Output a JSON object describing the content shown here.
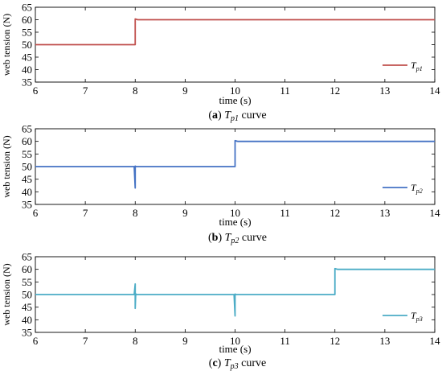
{
  "chart_data": [
    {
      "type": "line",
      "caption_letter": "a",
      "caption_symbol": "T",
      "caption_sub": "p1",
      "caption_suffix": "curve",
      "xlabel": "time (s)",
      "ylabel": "web tension (N)",
      "xlim": [
        6,
        14
      ],
      "ylim": [
        35,
        65
      ],
      "xticks": [
        6,
        7,
        8,
        9,
        10,
        11,
        12,
        13,
        14
      ],
      "yticks": [
        35,
        40,
        45,
        50,
        55,
        60,
        65
      ],
      "grid": false,
      "legend_position": "bottom-right",
      "series": [
        {
          "name": "Tp1",
          "legend_symbol": "T",
          "legend_sub": "p1",
          "color": "#c0504d",
          "x": [
            6,
            8.0,
            8.0,
            8.05,
            14
          ],
          "y": [
            50,
            50,
            60.3,
            60,
            60
          ]
        }
      ]
    },
    {
      "type": "line",
      "caption_letter": "b",
      "caption_symbol": "T",
      "caption_sub": "p2",
      "caption_suffix": "curve",
      "xlabel": "time (s)",
      "ylabel": "web tension (N)",
      "xlim": [
        6,
        14
      ],
      "ylim": [
        35,
        65
      ],
      "xticks": [
        6,
        7,
        8,
        9,
        10,
        11,
        12,
        13,
        14
      ],
      "yticks": [
        35,
        40,
        45,
        50,
        55,
        60,
        65
      ],
      "grid": false,
      "legend_position": "bottom-right",
      "series": [
        {
          "name": "Tp2",
          "legend_symbol": "T",
          "legend_sub": "p2",
          "color": "#4472c4",
          "x": [
            6,
            7.98,
            8.0,
            8.0,
            8.02,
            8.4,
            10.0,
            10.0,
            10.05,
            14
          ],
          "y": [
            50,
            50,
            41.5,
            50.2,
            50,
            50,
            50,
            60.3,
            60,
            60
          ]
        }
      ]
    },
    {
      "type": "line",
      "caption_letter": "c",
      "caption_symbol": "T",
      "caption_sub": "p3",
      "caption_suffix": "curve",
      "xlabel": "time (s)",
      "ylabel": "web tension (N)",
      "xlim": [
        6,
        14
      ],
      "ylim": [
        35,
        65
      ],
      "xticks": [
        6,
        7,
        8,
        9,
        10,
        11,
        12,
        13,
        14
      ],
      "yticks": [
        35,
        40,
        45,
        50,
        55,
        60,
        65
      ],
      "grid": false,
      "legend_position": "bottom-right",
      "series": [
        {
          "name": "Tp3",
          "legend_symbol": "T",
          "legend_sub": "p3",
          "color": "#4bacc6",
          "x": [
            6,
            7.98,
            8.0,
            8.0,
            8.01,
            8.02,
            9.98,
            10.0,
            10.0,
            10.02,
            12.0,
            12.0,
            12.05,
            14
          ],
          "y": [
            50,
            50,
            54.2,
            44.5,
            50.3,
            50,
            50,
            41.5,
            50.2,
            50,
            50,
            60.3,
            60,
            60
          ]
        }
      ]
    }
  ]
}
